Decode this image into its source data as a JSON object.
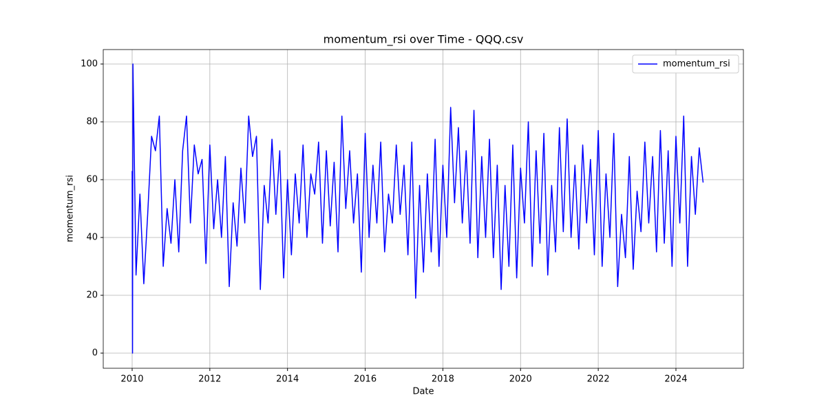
{
  "chart_data": {
    "type": "line",
    "title": "momentum_rsi over Time - QQQ.csv",
    "x_label": "Date",
    "y_label": "momentum_rsi",
    "x": [
      2010,
      2010.01,
      2010.02,
      2010.1,
      2010.2,
      2010.3,
      2010.4,
      2010.5,
      2010.6,
      2010.7,
      2010.8,
      2010.9,
      2011,
      2011.1,
      2011.2,
      2011.3,
      2011.4,
      2011.5,
      2011.6,
      2011.7,
      2011.8,
      2011.9,
      2012,
      2012.1,
      2012.2,
      2012.3,
      2012.4,
      2012.5,
      2012.6,
      2012.7,
      2012.8,
      2012.9,
      2013,
      2013.1,
      2013.2,
      2013.3,
      2013.4,
      2013.5,
      2013.6,
      2013.7,
      2013.8,
      2013.9,
      2014,
      2014.1,
      2014.2,
      2014.3,
      2014.4,
      2014.5,
      2014.6,
      2014.7,
      2014.8,
      2014.9,
      2015,
      2015.1,
      2015.2,
      2015.3,
      2015.4,
      2015.5,
      2015.6,
      2015.7,
      2015.8,
      2015.9,
      2016,
      2016.1,
      2016.2,
      2016.3,
      2016.4,
      2016.5,
      2016.6,
      2016.7,
      2016.8,
      2016.9,
      2017,
      2017.1,
      2017.2,
      2017.3,
      2017.4,
      2017.5,
      2017.6,
      2017.7,
      2017.8,
      2017.9,
      2018,
      2018.1,
      2018.2,
      2018.3,
      2018.4,
      2018.5,
      2018.6,
      2018.7,
      2018.8,
      2018.9,
      2019,
      2019.1,
      2019.2,
      2019.3,
      2019.4,
      2019.5,
      2019.6,
      2019.7,
      2019.8,
      2019.9,
      2020,
      2020.1,
      2020.2,
      2020.3,
      2020.4,
      2020.5,
      2020.6,
      2020.7,
      2020.8,
      2020.9,
      2021,
      2021.1,
      2021.2,
      2021.3,
      2021.4,
      2021.5,
      2021.6,
      2021.7,
      2021.8,
      2021.9,
      2022,
      2022.1,
      2022.2,
      2022.3,
      2022.4,
      2022.5,
      2022.6,
      2022.7,
      2022.8,
      2022.9,
      2023,
      2023.1,
      2023.2,
      2023.3,
      2023.4,
      2023.5,
      2023.6,
      2023.7,
      2023.8,
      2023.9,
      2024,
      2024.1,
      2024.2,
      2024.3,
      2024.4,
      2024.5,
      2024.6,
      2024.7
    ],
    "series": [
      {
        "name": "momentum_rsi",
        "color": "#0000ff",
        "values": [
          63,
          0,
          100,
          27,
          55,
          24,
          48,
          75,
          70,
          82,
          30,
          50,
          38,
          60,
          35,
          70,
          82,
          45,
          72,
          62,
          67,
          31,
          72,
          43,
          60,
          40,
          68,
          23,
          52,
          37,
          64,
          45,
          82,
          68,
          75,
          22,
          58,
          45,
          74,
          48,
          70,
          26,
          60,
          34,
          62,
          45,
          72,
          40,
          62,
          55,
          73,
          38,
          70,
          44,
          66,
          35,
          82,
          50,
          70,
          45,
          62,
          28,
          76,
          40,
          65,
          45,
          73,
          35,
          55,
          45,
          72,
          48,
          65,
          34,
          73,
          19,
          58,
          28,
          62,
          35,
          74,
          30,
          65,
          40,
          85,
          52,
          78,
          45,
          70,
          38,
          84,
          33,
          68,
          40,
          74,
          33,
          65,
          22,
          58,
          30,
          72,
          26,
          64,
          45,
          80,
          30,
          70,
          38,
          76,
          27,
          58,
          35,
          78,
          42,
          81,
          40,
          65,
          36,
          72,
          45,
          67,
          34,
          77,
          30,
          62,
          40,
          76,
          23,
          48,
          33,
          68,
          29,
          56,
          42,
          73,
          45,
          68,
          35,
          77,
          38,
          70,
          30,
          75,
          45,
          82,
          30,
          68,
          48,
          71,
          59
        ]
      }
    ],
    "xlim": [
      2009.256,
      2025.737
    ],
    "ylim": [
      -5.24,
      105
    ],
    "xticks": [
      2010,
      2012,
      2014,
      2016,
      2018,
      2020,
      2022,
      2024
    ],
    "yticks": [
      0,
      20,
      40,
      60,
      80,
      100
    ],
    "grid": true,
    "legend": "upper right"
  }
}
